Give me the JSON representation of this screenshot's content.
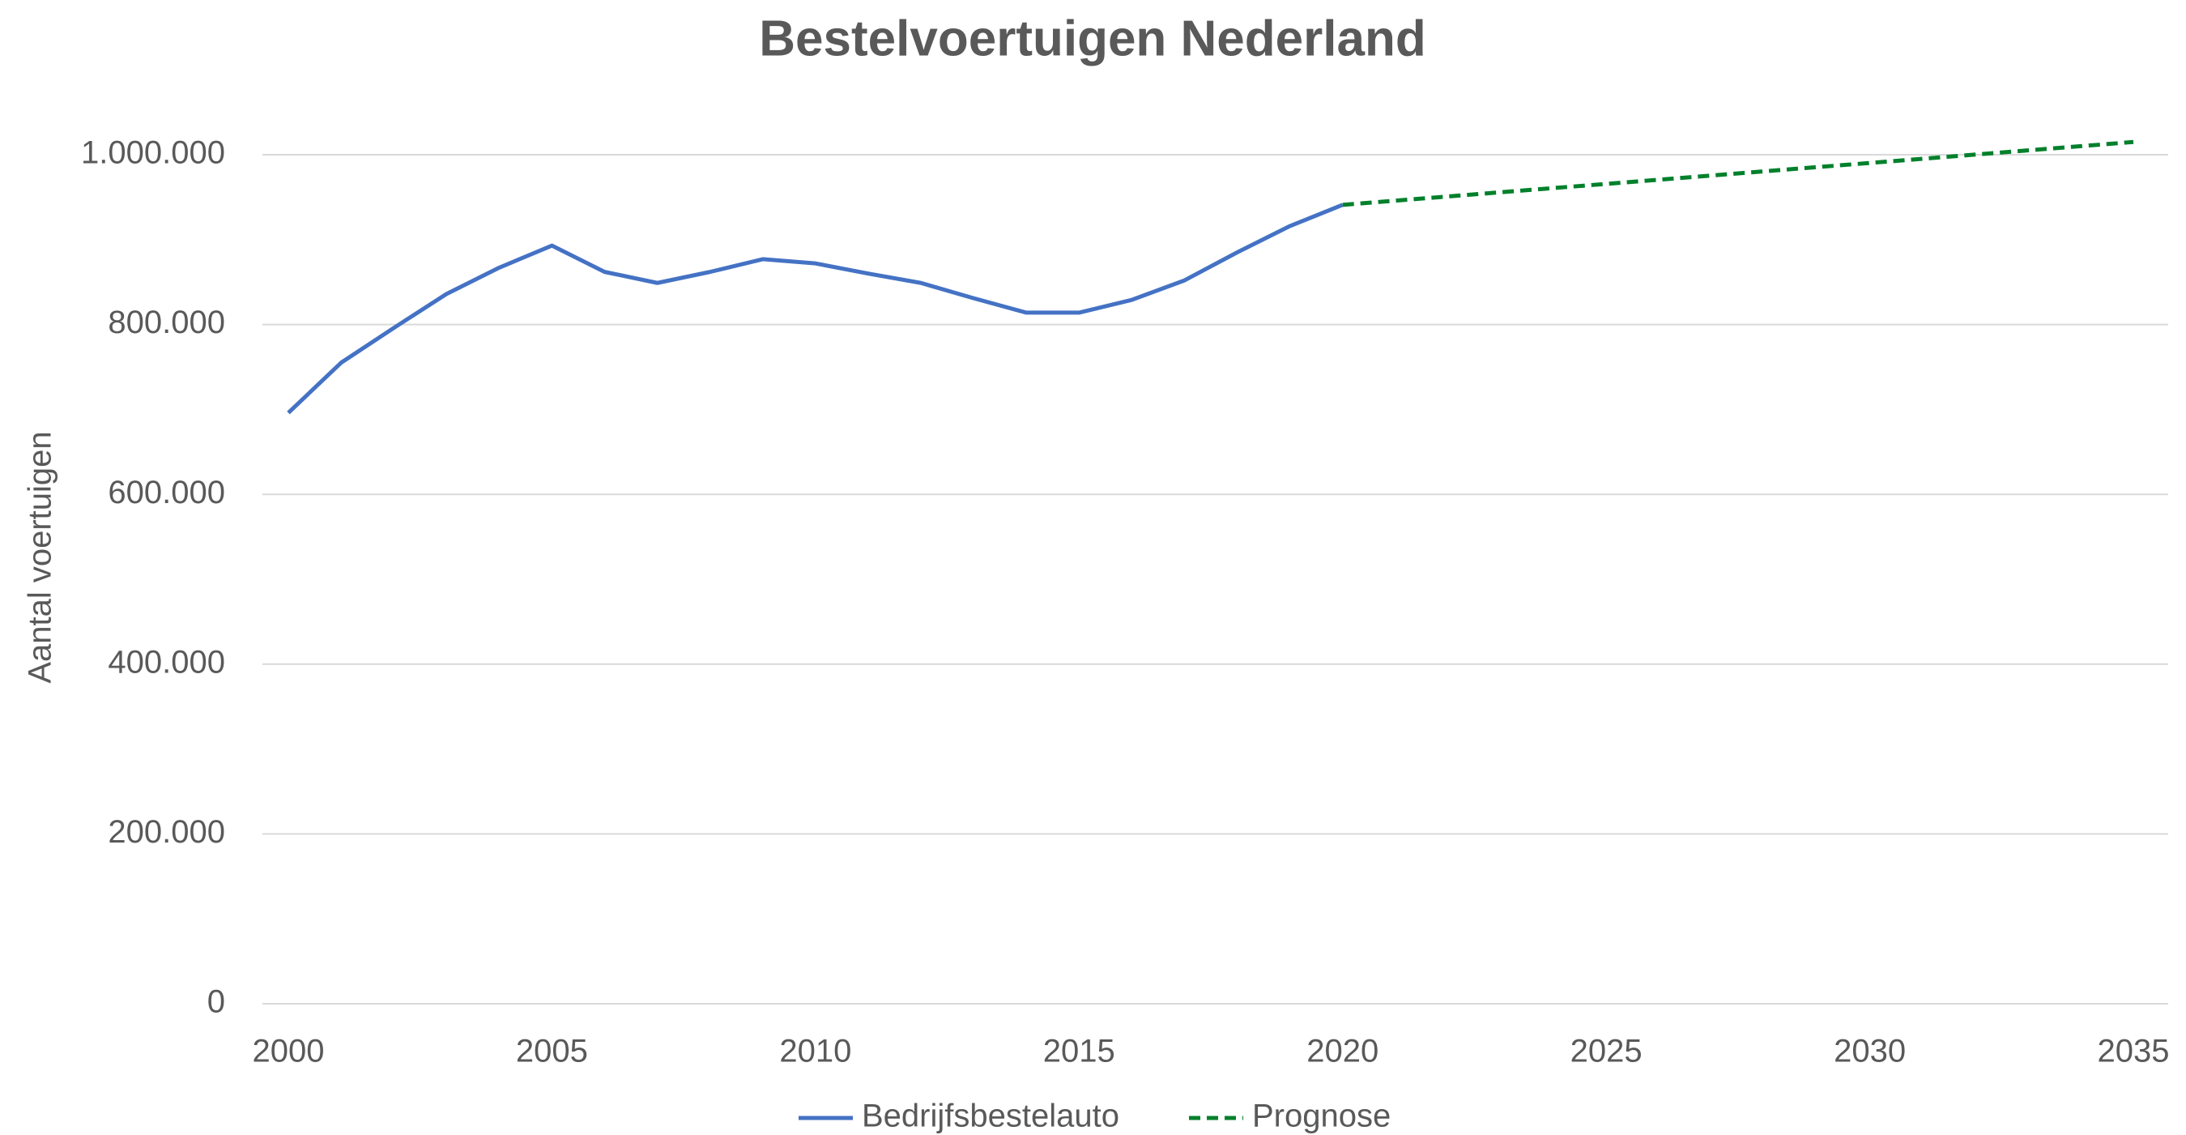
{
  "chart_data": {
    "type": "line",
    "title": "Bestelvoertuigen Nederland",
    "y_label": "Aantal voertuigen",
    "series": [
      {
        "name": "Bedrijfsbestelauto",
        "color": "#4472c4",
        "dashed": false,
        "x": [
          2000,
          2001,
          2002,
          2003,
          2004,
          2005,
          2006,
          2007,
          2008,
          2009,
          2010,
          2011,
          2012,
          2013,
          2014,
          2015,
          2016,
          2017,
          2018,
          2019,
          2020
        ],
        "values": [
          696000,
          755000,
          796000,
          836000,
          867000,
          893000,
          862000,
          849000,
          862000,
          877000,
          872000,
          860000,
          849000,
          831000,
          814000,
          814000,
          829000,
          852000,
          885000,
          916000,
          941000
        ]
      },
      {
        "name": "Prognose",
        "color": "#00802b",
        "dashed": true,
        "x": [
          2020,
          2035
        ],
        "values": [
          941000,
          1015000
        ]
      }
    ],
    "xlim": [
      2000,
      2035
    ],
    "xticks": [
      2000,
      2005,
      2010,
      2015,
      2020,
      2025,
      2030,
      2035
    ],
    "ylim": [
      0,
      1000000
    ],
    "yticks": [
      0,
      {
        "value": 200000,
        "label": "200.000"
      },
      {
        "value": 400000,
        "label": "400.000"
      },
      {
        "value": 600000,
        "label": "600.000"
      },
      {
        "value": 800000,
        "label": "800.000"
      },
      {
        "value": 1000000,
        "label": "1.000.000"
      }
    ],
    "grid": true,
    "legend": "bottom"
  }
}
